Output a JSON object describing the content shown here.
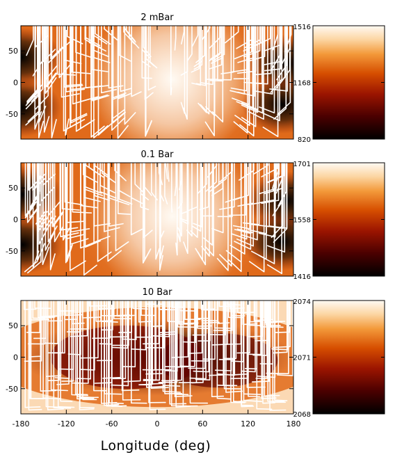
{
  "chart_data": {
    "type": "heatmap",
    "xlabel": "Longitude (deg)",
    "x_ticks": [
      -180,
      -120,
      -60,
      0,
      60,
      120,
      180
    ],
    "y_ticks": [
      50,
      0,
      -50
    ],
    "xlim": [
      -180,
      180
    ],
    "ylim": [
      -90,
      90
    ],
    "colormap": "black-red-orange-white",
    "panels": [
      {
        "title": "2 mBar",
        "colorbar": {
          "min": 820,
          "mid": 1168,
          "max": 1516
        },
        "hot_spot": {
          "lon": 20,
          "lat": 5
        },
        "cold_spots": [
          {
            "lon": -180,
            "lat": 40
          },
          {
            "lon": -180,
            "lat": -40
          },
          {
            "lon": 170,
            "lat": 30
          },
          {
            "lon": 165,
            "lat": -35
          }
        ]
      },
      {
        "title": "0.1 Bar",
        "colorbar": {
          "min": 1416,
          "mid": 1558,
          "max": 1701
        },
        "hot_spot": {
          "lon": 20,
          "lat": 5
        },
        "cold_spots": [
          {
            "lon": -178,
            "lat": 40
          },
          {
            "lon": -178,
            "lat": -40
          },
          {
            "lon": 170,
            "lat": 30
          },
          {
            "lon": 165,
            "lat": -35
          }
        ]
      },
      {
        "title": "10 Bar",
        "colorbar": {
          "min": 2068,
          "mid": 2071,
          "max": 2074
        },
        "pattern": "hot at poles, cold equatorial band"
      }
    ]
  }
}
